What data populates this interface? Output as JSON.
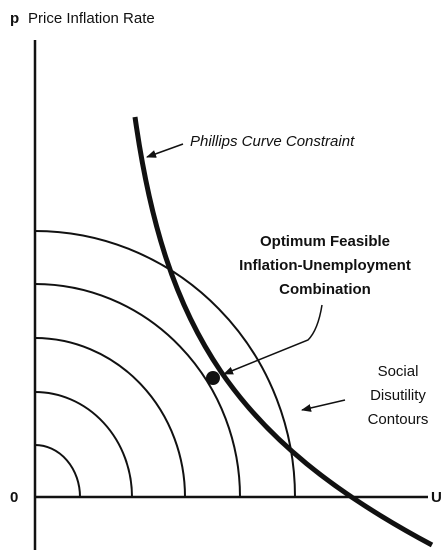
{
  "axes": {
    "y_symbol": "p",
    "y_label": "Price Inflation Rate",
    "origin": "0",
    "x_label": "U"
  },
  "labels": {
    "phillips": "Phillips Curve Constraint",
    "optimum": [
      "Optimum Feasible",
      "Inflation-Unemployment",
      "Combination"
    ],
    "contours": [
      "Social",
      "Disutility",
      "Contours"
    ]
  }
}
